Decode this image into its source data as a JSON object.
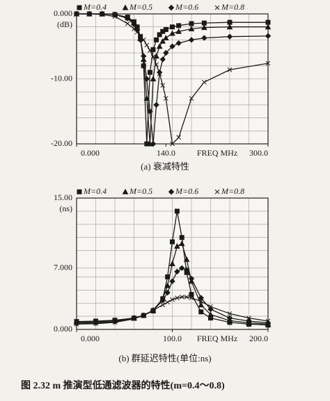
{
  "chart_data": [
    {
      "type": "line",
      "caption": "(a) 衰减特性",
      "y_unit": "(dB)",
      "x_label": "FREQ MHz",
      "x": [
        0,
        20,
        40,
        60,
        80,
        90,
        95,
        100,
        105,
        110,
        115,
        120,
        125,
        130,
        135,
        140,
        150,
        160,
        180,
        200,
        240,
        300
      ],
      "xlim": [
        0,
        300
      ],
      "ylim": [
        -20,
        0
      ],
      "xticks": [
        {
          "value": 0,
          "label": "0.000"
        },
        {
          "value": 140,
          "label": "140.0"
        },
        {
          "value": 300,
          "label": "300.0"
        }
      ],
      "yticks": [
        {
          "value": 0,
          "label": "0.000"
        },
        {
          "value": -10,
          "label": "-10.00"
        },
        {
          "value": -20,
          "label": "-20.00"
        }
      ],
      "xgrid": [
        30,
        60,
        90,
        120,
        150,
        180,
        210,
        240,
        270
      ],
      "ygrid": [
        -2,
        -4,
        -6,
        -8,
        -12,
        -14,
        -16,
        -18
      ],
      "series": [
        {
          "name": "M=0.4",
          "color": "#1a1a1a",
          "marker": "square",
          "values": [
            0,
            0,
            0,
            -0.1,
            -0.5,
            -1.2,
            -2,
            -3.5,
            -8,
            -20,
            -9,
            -5.5,
            -4,
            -3.2,
            -2.7,
            -2.4,
            -2,
            -1.8,
            -1.5,
            -1.4,
            -1.3,
            -1.3
          ]
        },
        {
          "name": "M=0.5",
          "color": "#1a1a1a",
          "marker": "triangle",
          "values": [
            0,
            0,
            0,
            -0.1,
            -0.6,
            -1.4,
            -2.2,
            -3.8,
            -7,
            -13,
            -20,
            -10,
            -6.5,
            -5,
            -4.2,
            -3.7,
            -3,
            -2.7,
            -2.3,
            -2.1,
            -2,
            -2
          ]
        },
        {
          "name": "M=0.6",
          "color": "#1a1a1a",
          "marker": "diamond",
          "values": [
            0,
            0,
            0,
            -0.1,
            -0.7,
            -1.6,
            -2.5,
            -4,
            -6.5,
            -10,
            -15,
            -20,
            -14,
            -9,
            -7,
            -6,
            -5,
            -4.5,
            -4,
            -3.7,
            -3.5,
            -3.4
          ]
        },
        {
          "name": "M=0.8",
          "color": "#1a1a1a",
          "marker": "x",
          "values": [
            0,
            0,
            -0.1,
            -0.4,
            -1.5,
            -2.3,
            -2.8,
            -3.4,
            -4,
            -4.8,
            -5.6,
            -6.6,
            -7.8,
            -9.2,
            -11,
            -13,
            -20,
            -19,
            -13,
            -10.5,
            -8.6,
            -7.6
          ]
        }
      ]
    },
    {
      "type": "line",
      "caption": "(b) 群延迟特性(单位:ns)",
      "y_unit": "(ns)",
      "x_label": "FREQ MHz",
      "x": [
        0,
        20,
        40,
        60,
        70,
        80,
        90,
        95,
        100,
        105,
        110,
        115,
        120,
        130,
        140,
        160,
        180,
        200
      ],
      "xlim": [
        0,
        200
      ],
      "ylim": [
        0,
        15
      ],
      "xticks": [
        {
          "value": 0,
          "label": "0.000"
        },
        {
          "value": 100,
          "label": "100.0"
        },
        {
          "value": 200,
          "label": "200.0"
        }
      ],
      "yticks": [
        {
          "value": 0,
          "label": "0.000"
        },
        {
          "value": 7,
          "label": "7.000"
        },
        {
          "value": 15,
          "label": "15.00"
        }
      ],
      "xgrid": [
        20,
        40,
        60,
        80,
        100,
        120,
        140,
        160,
        180
      ],
      "ygrid": [
        1.5,
        3,
        4.5,
        6,
        9,
        10.5,
        12,
        13.5
      ],
      "series": [
        {
          "name": "M=0.4",
          "color": "#1a1a1a",
          "marker": "square",
          "values": [
            0.9,
            0.95,
            1.05,
            1.3,
            1.6,
            2.1,
            3.5,
            6,
            10,
            13.5,
            10.5,
            6.5,
            4,
            2,
            1.3,
            0.8,
            0.6,
            0.5
          ]
        },
        {
          "name": "M=0.5",
          "color": "#1a1a1a",
          "marker": "triangle",
          "values": [
            0.8,
            0.85,
            1,
            1.3,
            1.6,
            2.2,
            3.5,
            5,
            7.5,
            9.5,
            9.8,
            8,
            5.5,
            2.8,
            1.7,
            1,
            0.75,
            0.6
          ]
        },
        {
          "name": "M=0.6",
          "color": "#1a1a1a",
          "marker": "diamond",
          "values": [
            0.7,
            0.75,
            0.9,
            1.3,
            1.6,
            2.2,
            3.3,
            4.2,
            5.5,
            6.6,
            7,
            6.8,
            5.8,
            3.6,
            2.3,
            1.3,
            0.95,
            0.75
          ]
        },
        {
          "name": "M=0.8",
          "color": "#1a1a1a",
          "marker": "x",
          "values": [
            0.6,
            0.65,
            0.8,
            1.2,
            1.6,
            2.2,
            2.8,
            3.1,
            3.4,
            3.6,
            3.7,
            3.7,
            3.6,
            3.2,
            2.6,
            1.8,
            1.3,
            0.95
          ]
        }
      ]
    }
  ],
  "figure_caption": "图 2.32  m 推演型低通滤波器的特性(m=0.4～0.8)"
}
